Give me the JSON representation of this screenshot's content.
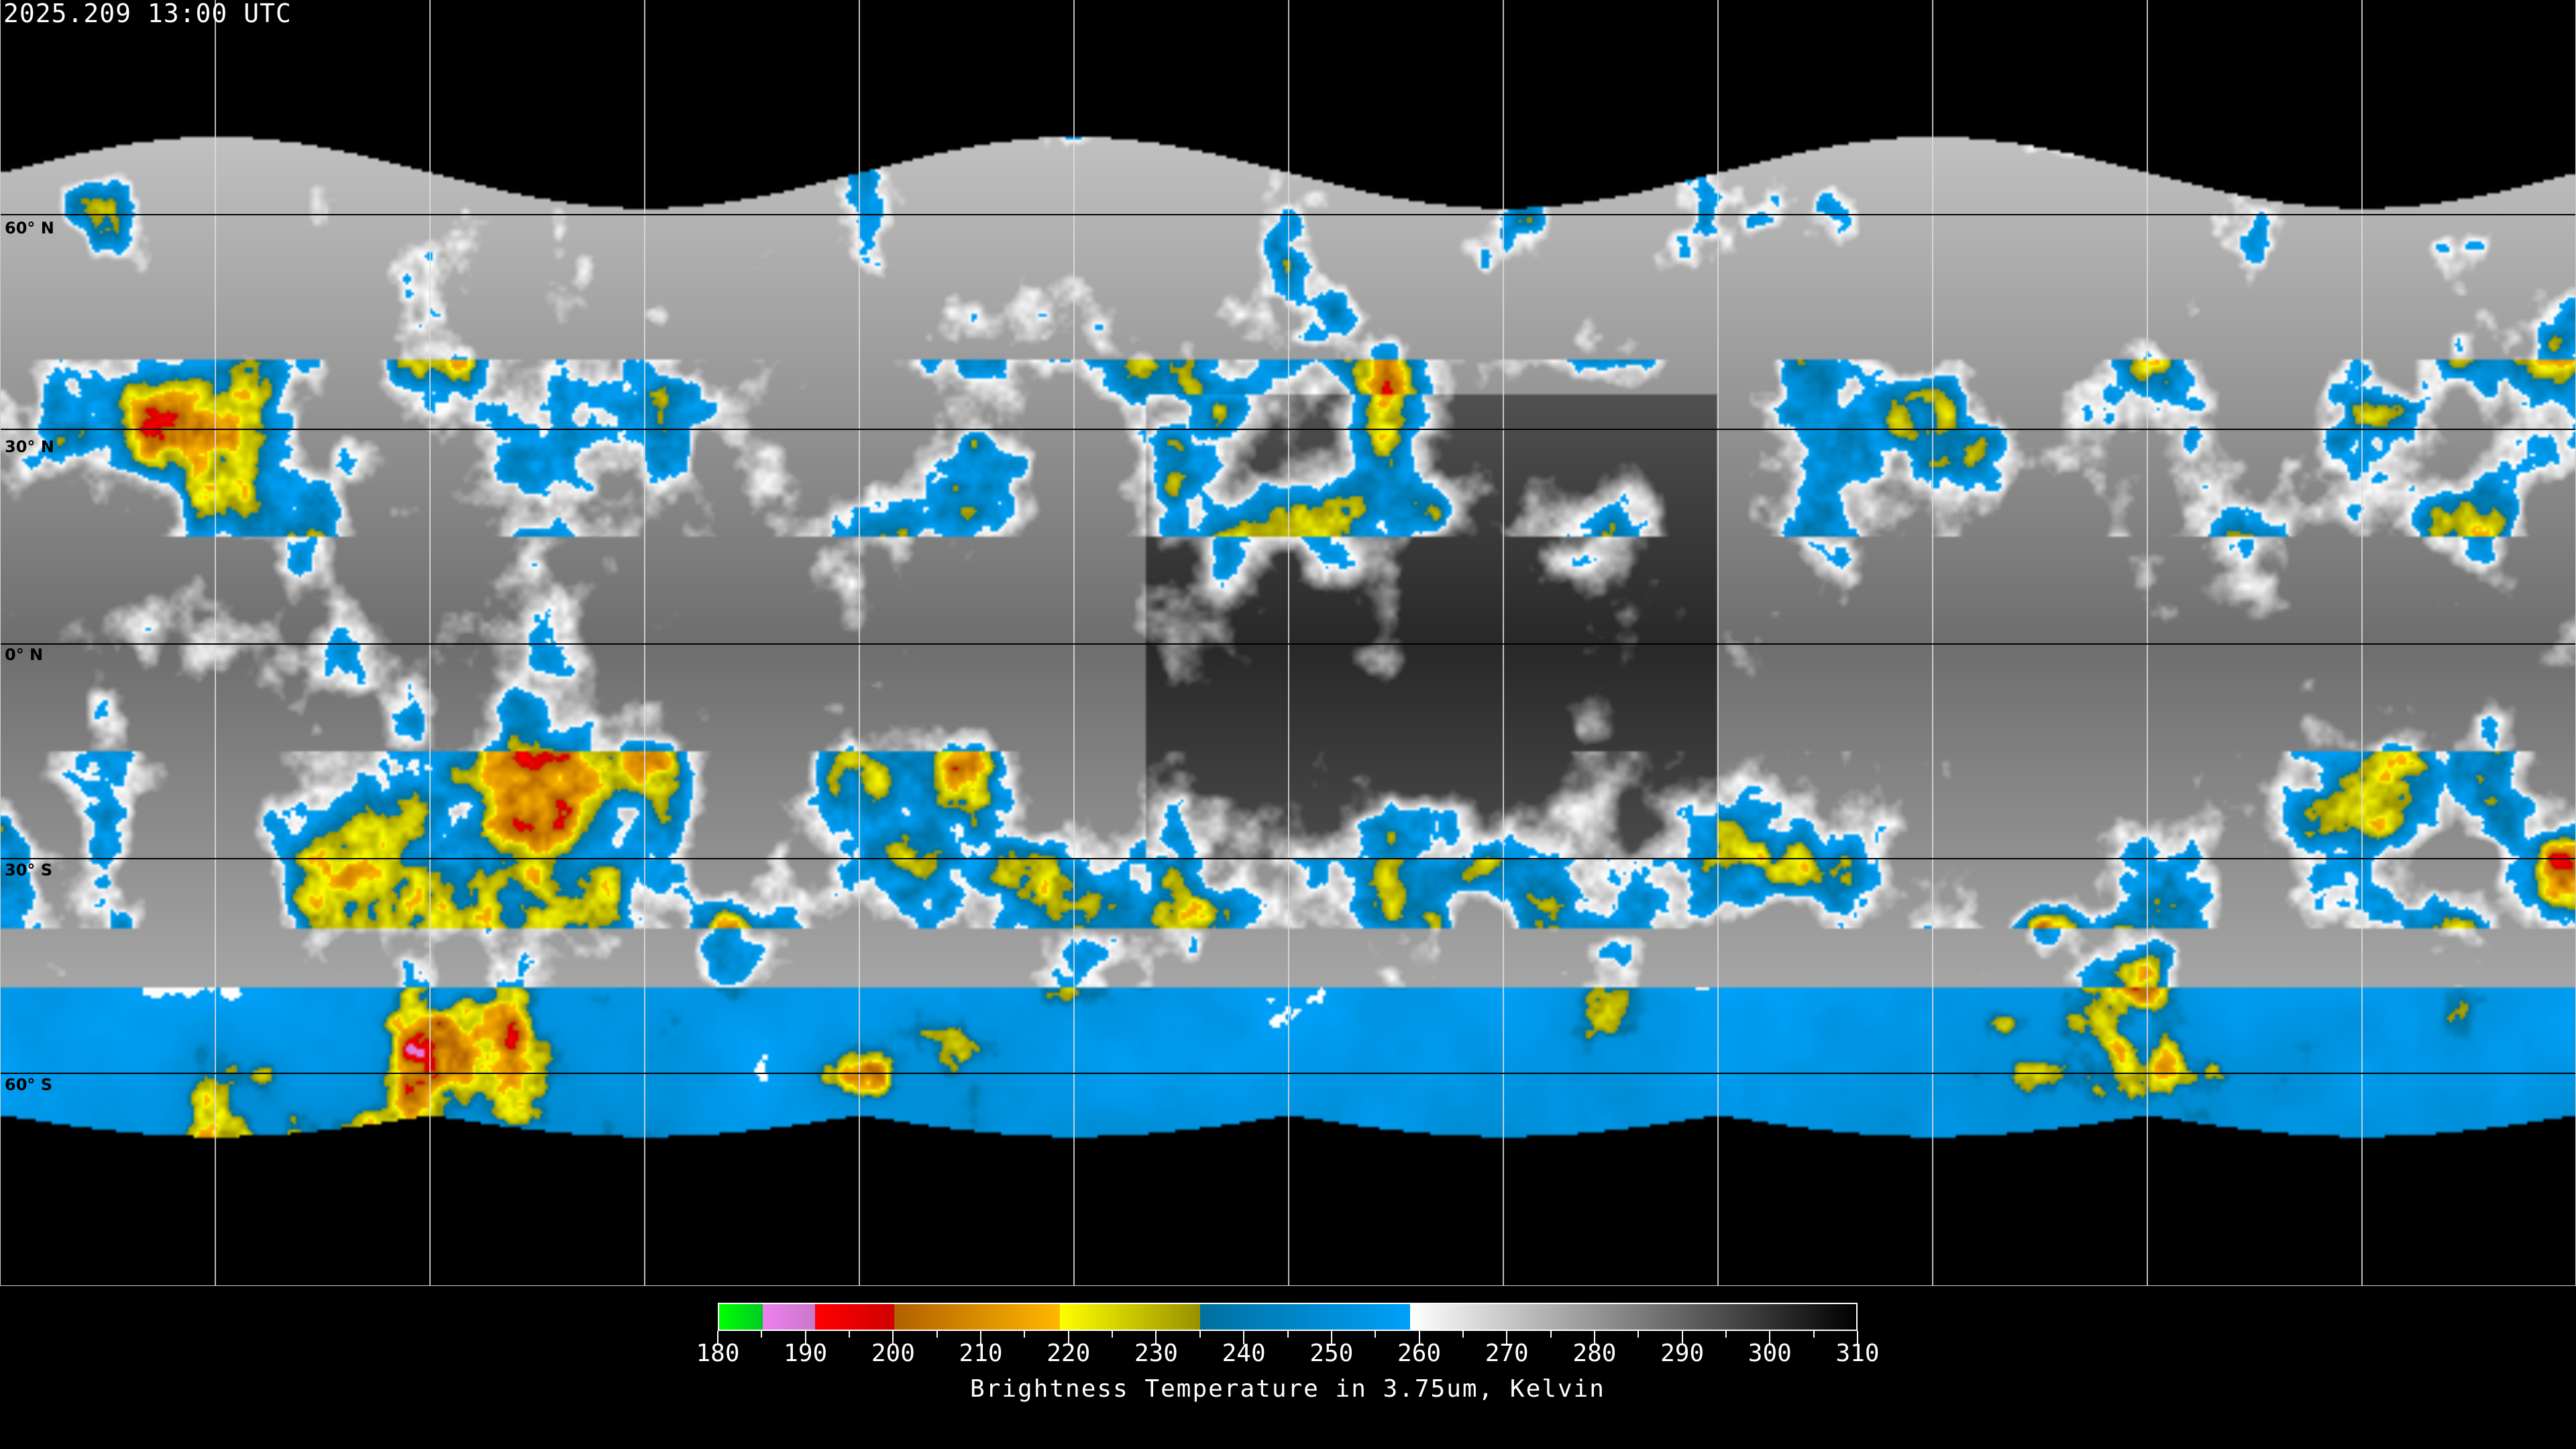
{
  "header": {
    "timestamp": "2025.209 13:00 UTC"
  },
  "map": {
    "projection": "equirectangular",
    "lat_labels": [
      "60° N",
      "30° N",
      "0° N",
      "30° S",
      "60° S"
    ],
    "grid_spacing_degrees": 30
  },
  "colorbar": {
    "title": "Brightness Temperature in 3.75um, Kelvin",
    "range": [
      180,
      310
    ],
    "tick_labels": [
      "180",
      "190",
      "200",
      "210",
      "220",
      "230",
      "240",
      "250",
      "260",
      "270",
      "280",
      "290",
      "300",
      "310"
    ],
    "segments": [
      {
        "from": 180,
        "to": 185,
        "colors": [
          "#00ff00",
          "#00cc22"
        ]
      },
      {
        "from": 185,
        "to": 191,
        "colors": [
          "#f080f0",
          "#c878c8"
        ]
      },
      {
        "from": 191,
        "to": 200,
        "colors": [
          "#ff0000",
          "#d00000"
        ]
      },
      {
        "from": 200,
        "to": 219,
        "colors": [
          "#b06000",
          "#ffb800"
        ]
      },
      {
        "from": 219,
        "to": 235,
        "colors": [
          "#ffff00",
          "#989000"
        ]
      },
      {
        "from": 235,
        "to": 259,
        "colors": [
          "#0070a0",
          "#00a0f8"
        ]
      },
      {
        "from": 259,
        "to": 310,
        "colors": [
          "#ffffff",
          "#000000"
        ]
      }
    ]
  }
}
